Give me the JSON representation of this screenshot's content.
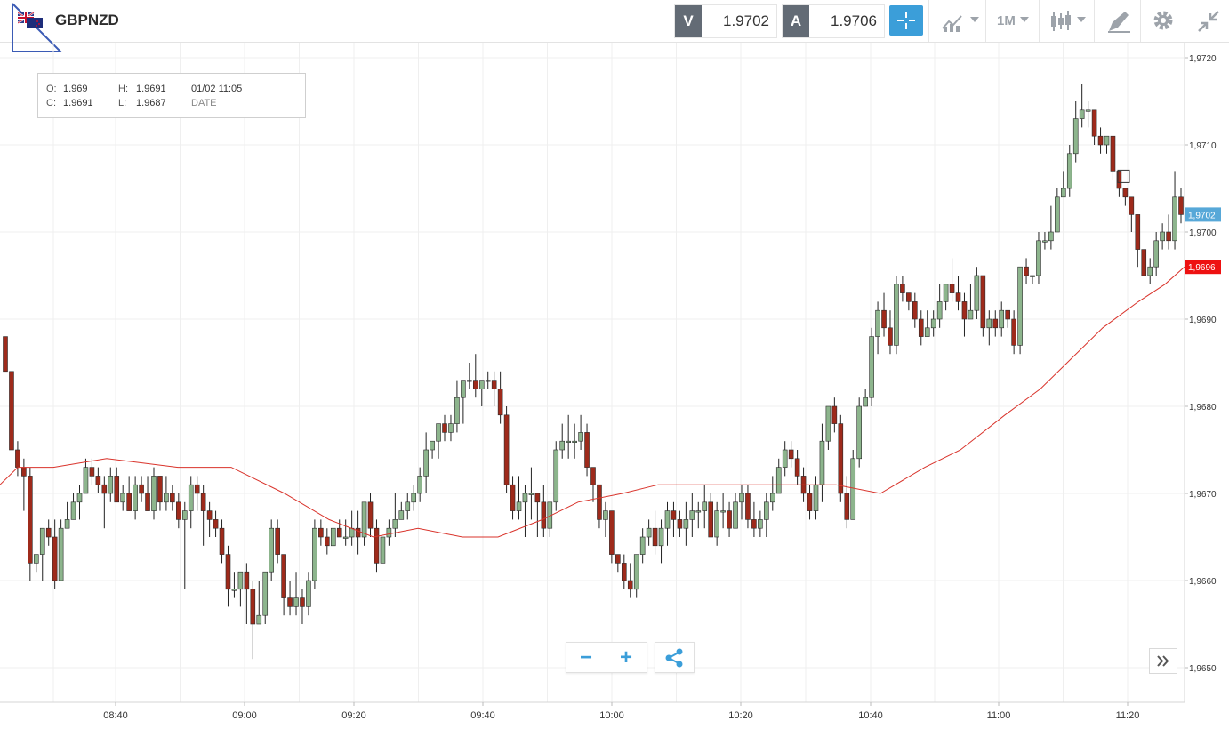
{
  "header": {
    "symbol": "GBPNZD",
    "flag_icon": "gb-nz-flag-icon",
    "sell": {
      "label": "V",
      "value": "1.9702"
    },
    "buy": {
      "label": "A",
      "value": "1.9706"
    },
    "timeframe": "1M",
    "tools": [
      "crosshair-icon",
      "chart-type-icon",
      "candlestick-icon",
      "draw-tool-icon",
      "gear-icon",
      "collapse-icon"
    ]
  },
  "ohlc_panel": {
    "o_label": "O:",
    "o_value": "1.969",
    "h_label": "H:",
    "h_value": "1.9691",
    "c_label": "C:",
    "c_value": "1.9691",
    "l_label": "L:",
    "l_value": "1.9687",
    "date": "01/02 11:05",
    "date_label": "DATE"
  },
  "controls": {
    "zoom_out": "−",
    "zoom_in": "+"
  },
  "colors": {
    "up": "#8db58d",
    "down": "#9e2a1b",
    "ma": "#d9332b",
    "accent": "#3b9ed9",
    "current": "#57a8d8",
    "ma_tag": "#ee1111"
  },
  "chart_data": {
    "type": "candlestick",
    "symbol": "GBPNZD",
    "ylim": [
      1.9646,
      1.9723
    ],
    "y_ticks": [
      "1,9720",
      "1,9710",
      "1,9700",
      "1,9690",
      "1,9680",
      "1,9670",
      "1,9660",
      "1,9650"
    ],
    "x_ticks": [
      "08:40",
      "09:00",
      "09:20",
      "09:40",
      "10:00",
      "10:20",
      "10:40",
      "11:00",
      "11:20"
    ],
    "price_tags": [
      {
        "label": "1,9702",
        "value": 1.9702,
        "kind": "current"
      },
      {
        "label": "1,9696",
        "value": 1.9696,
        "kind": "ma"
      }
    ],
    "moving_average": [
      [
        0,
        1.9671
      ],
      [
        20,
        1.9673
      ],
      [
        60,
        1.9673
      ],
      [
        120,
        1.9674
      ],
      [
        200,
        1.9673
      ],
      [
        260,
        1.9673
      ],
      [
        320,
        1.967
      ],
      [
        370,
        1.9667
      ],
      [
        420,
        1.9665
      ],
      [
        470,
        1.9666
      ],
      [
        520,
        1.9665
      ],
      [
        560,
        1.9665
      ],
      [
        610,
        1.9667
      ],
      [
        650,
        1.9669
      ],
      [
        700,
        1.967
      ],
      [
        740,
        1.9671
      ],
      [
        800,
        1.9671
      ],
      [
        860,
        1.9671
      ],
      [
        940,
        1.9671
      ],
      [
        990,
        1.967
      ],
      [
        1040,
        1.9673
      ],
      [
        1080,
        1.9675
      ],
      [
        1130,
        1.9679
      ],
      [
        1170,
        1.9682
      ],
      [
        1200,
        1.9685
      ],
      [
        1240,
        1.9689
      ],
      [
        1280,
        1.9692
      ],
      [
        1310,
        1.9694
      ],
      [
        1332,
        1.9696
      ]
    ],
    "candles": [
      [
        1.9688,
        1.9684,
        1.9688,
        1.9684
      ],
      [
        1.9684,
        1.9675,
        1.9684,
        1.9675
      ],
      [
        1.9675,
        1.9673,
        1.9676,
        1.9672
      ],
      [
        1.9673,
        1.9672,
        1.9674,
        1.9668
      ],
      [
        1.9672,
        1.9662,
        1.9673,
        1.966
      ],
      [
        1.9662,
        1.9663,
        1.9663,
        1.9661
      ],
      [
        1.9663,
        1.9666,
        1.9666,
        1.966
      ],
      [
        1.9666,
        1.9665,
        1.9667,
        1.9664
      ],
      [
        1.9665,
        1.966,
        1.9667,
        1.9659
      ],
      [
        1.966,
        1.9666,
        1.9667,
        1.966
      ],
      [
        1.9666,
        1.9667,
        1.9669,
        1.9666
      ],
      [
        1.9667,
        1.9669,
        1.967,
        1.9667
      ],
      [
        1.9669,
        1.967,
        1.9671,
        1.9667
      ],
      [
        1.967,
        1.9673,
        1.9674,
        1.967
      ],
      [
        1.9673,
        1.9672,
        1.9674,
        1.9671
      ],
      [
        1.9672,
        1.9671,
        1.9673,
        1.967
      ],
      [
        1.9671,
        1.967,
        1.9672,
        1.9666
      ],
      [
        1.967,
        1.9672,
        1.9673,
        1.9669
      ],
      [
        1.9672,
        1.9669,
        1.9673,
        1.9669
      ],
      [
        1.9669,
        1.967,
        1.9671,
        1.9668
      ],
      [
        1.967,
        1.9668,
        1.9672,
        1.9668
      ],
      [
        1.9668,
        1.9671,
        1.9672,
        1.9667
      ],
      [
        1.9671,
        1.967,
        1.9672,
        1.9669
      ],
      [
        1.967,
        1.9668,
        1.9672,
        1.9668
      ],
      [
        1.9668,
        1.9672,
        1.9673,
        1.9667
      ],
      [
        1.9672,
        1.9669,
        1.9672,
        1.9668
      ],
      [
        1.9669,
        1.967,
        1.9672,
        1.9668
      ],
      [
        1.967,
        1.9669,
        1.9671,
        1.9668
      ],
      [
        1.9669,
        1.9667,
        1.967,
        1.9666
      ],
      [
        1.9667,
        1.9668,
        1.9669,
        1.9659
      ],
      [
        1.9668,
        1.9671,
        1.9672,
        1.9666
      ],
      [
        1.9671,
        1.967,
        1.9672,
        1.9668
      ],
      [
        1.967,
        1.9668,
        1.9671,
        1.9664
      ],
      [
        1.9668,
        1.9667,
        1.9669,
        1.9665
      ],
      [
        1.9667,
        1.9666,
        1.9668,
        1.9665
      ],
      [
        1.9666,
        1.9663,
        1.9667,
        1.9662
      ],
      [
        1.9663,
        1.9659,
        1.9664,
        1.9657
      ],
      [
        1.9659,
        1.9659,
        1.9661,
        1.9658
      ],
      [
        1.9659,
        1.9661,
        1.9661,
        1.9657
      ],
      [
        1.9661,
        1.9659,
        1.9662,
        1.9655
      ],
      [
        1.9659,
        1.9655,
        1.966,
        1.9651
      ],
      [
        1.9655,
        1.9656,
        1.966,
        1.9655
      ],
      [
        1.9656,
        1.9661,
        1.9661,
        1.9655
      ],
      [
        1.9661,
        1.9666,
        1.9667,
        1.966
      ],
      [
        1.9666,
        1.9663,
        1.9667,
        1.9662
      ],
      [
        1.9663,
        1.9658,
        1.9663,
        1.9656
      ],
      [
        1.9658,
        1.9657,
        1.966,
        1.9656
      ],
      [
        1.9657,
        1.9658,
        1.9661,
        1.9656
      ],
      [
        1.9658,
        1.9657,
        1.9659,
        1.9655
      ],
      [
        1.9657,
        1.966,
        1.9661,
        1.9656
      ],
      [
        1.966,
        1.9666,
        1.9667,
        1.9659
      ],
      [
        1.9666,
        1.9665,
        1.9667,
        1.9664
      ],
      [
        1.9665,
        1.9664,
        1.9666,
        1.9663
      ],
      [
        1.9664,
        1.9666,
        1.9666,
        1.9664
      ],
      [
        1.9666,
        1.9665,
        1.9667,
        1.9665
      ],
      [
        1.9665,
        1.9665,
        1.9667,
        1.9664
      ],
      [
        1.9665,
        1.9666,
        1.9668,
        1.9664
      ],
      [
        1.9666,
        1.9665,
        1.9668,
        1.9663
      ],
      [
        1.9665,
        1.9669,
        1.9669,
        1.9664
      ],
      [
        1.9669,
        1.9666,
        1.967,
        1.9665
      ],
      [
        1.9666,
        1.9662,
        1.9667,
        1.9661
      ],
      [
        1.9662,
        1.9665,
        1.9665,
        1.9662
      ],
      [
        1.9665,
        1.9666,
        1.9667,
        1.9664
      ],
      [
        1.9666,
        1.9667,
        1.967,
        1.9665
      ],
      [
        1.9667,
        1.9668,
        1.9669,
        1.9667
      ],
      [
        1.9668,
        1.9669,
        1.967,
        1.9667
      ],
      [
        1.9669,
        1.967,
        1.9671,
        1.9668
      ],
      [
        1.967,
        1.9672,
        1.9673,
        1.9669
      ],
      [
        1.9672,
        1.9675,
        1.9677,
        1.967
      ],
      [
        1.9675,
        1.9676,
        1.9676,
        1.9674
      ],
      [
        1.9676,
        1.9678,
        1.9678,
        1.9674
      ],
      [
        1.9678,
        1.9677,
        1.9679,
        1.9676
      ],
      [
        1.9677,
        1.9678,
        1.9679,
        1.9676
      ],
      [
        1.9678,
        1.9681,
        1.9683,
        1.9677
      ],
      [
        1.9681,
        1.9683,
        1.9683,
        1.9678
      ],
      [
        1.9683,
        1.9683,
        1.9685,
        1.9682
      ],
      [
        1.9683,
        1.9682,
        1.9686,
        1.9681
      ],
      [
        1.9682,
        1.9683,
        1.9683,
        1.968
      ],
      [
        1.9683,
        1.9683,
        1.9684,
        1.9682
      ],
      [
        1.9683,
        1.9682,
        1.9684,
        1.968
      ],
      [
        1.9682,
        1.9679,
        1.9684,
        1.9678
      ],
      [
        1.9679,
        1.9671,
        1.968,
        1.967
      ],
      [
        1.9671,
        1.9668,
        1.9672,
        1.9667
      ],
      [
        1.9668,
        1.9669,
        1.9672,
        1.9667
      ],
      [
        1.9669,
        1.967,
        1.9671,
        1.9665
      ],
      [
        1.967,
        1.967,
        1.9673,
        1.9667
      ],
      [
        1.967,
        1.9669,
        1.967,
        1.9665
      ],
      [
        1.9669,
        1.9666,
        1.9671,
        1.9665
      ],
      [
        1.9666,
        1.9669,
        1.9669,
        1.9665
      ],
      [
        1.9669,
        1.9675,
        1.9676,
        1.9668
      ],
      [
        1.9675,
        1.9676,
        1.9678,
        1.9674
      ],
      [
        1.9676,
        1.9676,
        1.9679,
        1.9674
      ],
      [
        1.9676,
        1.9676,
        1.9678,
        1.9674
      ],
      [
        1.9676,
        1.9677,
        1.9679,
        1.9675
      ],
      [
        1.9677,
        1.9673,
        1.9678,
        1.9672
      ],
      [
        1.9673,
        1.9671,
        1.9673,
        1.9669
      ],
      [
        1.9671,
        1.9667,
        1.9671,
        1.9666
      ],
      [
        1.9667,
        1.9668,
        1.9669,
        1.9665
      ],
      [
        1.9668,
        1.9663,
        1.9668,
        1.9662
      ],
      [
        1.9663,
        1.9662,
        1.9663,
        1.9661
      ],
      [
        1.9662,
        1.966,
        1.9663,
        1.9659
      ],
      [
        1.966,
        1.9659,
        1.9662,
        1.9658
      ],
      [
        1.9659,
        1.9663,
        1.9663,
        1.9658
      ],
      [
        1.9663,
        1.9665,
        1.9666,
        1.9662
      ],
      [
        1.9665,
        1.9666,
        1.9667,
        1.9664
      ],
      [
        1.9666,
        1.9664,
        1.9668,
        1.9663
      ],
      [
        1.9664,
        1.9666,
        1.9667,
        1.9662
      ],
      [
        1.9666,
        1.9668,
        1.9669,
        1.9664
      ],
      [
        1.9668,
        1.9667,
        1.9669,
        1.9665
      ],
      [
        1.9667,
        1.9666,
        1.9668,
        1.9665
      ],
      [
        1.9666,
        1.9667,
        1.9669,
        1.9664
      ],
      [
        1.9667,
        1.9668,
        1.967,
        1.9665
      ],
      [
        1.9668,
        1.9668,
        1.9669,
        1.9666
      ],
      [
        1.9668,
        1.9669,
        1.9671,
        1.9666
      ],
      [
        1.9669,
        1.9665,
        1.967,
        1.9665
      ],
      [
        1.9665,
        1.9668,
        1.9669,
        1.9664
      ],
      [
        1.9668,
        1.9668,
        1.967,
        1.9666
      ],
      [
        1.9668,
        1.9666,
        1.9669,
        1.9665
      ],
      [
        1.9666,
        1.9669,
        1.967,
        1.9666
      ],
      [
        1.9669,
        1.967,
        1.9671,
        1.9667
      ],
      [
        1.967,
        1.9667,
        1.9671,
        1.9666
      ],
      [
        1.9667,
        1.9666,
        1.9669,
        1.9665
      ],
      [
        1.9666,
        1.9667,
        1.9668,
        1.9665
      ],
      [
        1.9667,
        1.9669,
        1.967,
        1.9665
      ],
      [
        1.9669,
        1.967,
        1.9672,
        1.9668
      ],
      [
        1.967,
        1.9673,
        1.9674,
        1.967
      ],
      [
        1.9673,
        1.9675,
        1.9676,
        1.9672
      ],
      [
        1.9675,
        1.9674,
        1.9676,
        1.9673
      ],
      [
        1.9674,
        1.9672,
        1.9675,
        1.9671
      ],
      [
        1.9672,
        1.967,
        1.9673,
        1.9669
      ],
      [
        1.967,
        1.9668,
        1.9671,
        1.9667
      ],
      [
        1.9668,
        1.9671,
        1.9672,
        1.9667
      ],
      [
        1.9671,
        1.9676,
        1.9678,
        1.9669
      ],
      [
        1.9676,
        1.968,
        1.968,
        1.9675
      ],
      [
        1.968,
        1.9678,
        1.9681,
        1.9677
      ],
      [
        1.9678,
        1.967,
        1.9679,
        1.9669
      ],
      [
        1.967,
        1.9667,
        1.9672,
        1.9666
      ],
      [
        1.9667,
        1.9674,
        1.9675,
        1.9667
      ],
      [
        1.9674,
        1.968,
        1.9681,
        1.9673
      ],
      [
        1.968,
        1.9681,
        1.9682,
        1.968
      ],
      [
        1.9681,
        1.9688,
        1.9689,
        1.968
      ],
      [
        1.9688,
        1.9691,
        1.9692,
        1.9686
      ],
      [
        1.9691,
        1.9689,
        1.9693,
        1.9688
      ],
      [
        1.9689,
        1.9687,
        1.9691,
        1.9686
      ],
      [
        1.9687,
        1.9694,
        1.9695,
        1.9686
      ],
      [
        1.9694,
        1.9693,
        1.9695,
        1.9692
      ],
      [
        1.9693,
        1.9692,
        1.9693,
        1.9691
      ],
      [
        1.9692,
        1.969,
        1.9693,
        1.9689
      ],
      [
        1.969,
        1.9688,
        1.9691,
        1.9687
      ],
      [
        1.9688,
        1.9689,
        1.9691,
        1.9688
      ],
      [
        1.9689,
        1.969,
        1.9691,
        1.9688
      ],
      [
        1.969,
        1.9692,
        1.9694,
        1.9689
      ],
      [
        1.9692,
        1.9694,
        1.9694,
        1.9691
      ],
      [
        1.9694,
        1.9693,
        1.9697,
        1.9692
      ],
      [
        1.9693,
        1.9692,
        1.9695,
        1.9691
      ],
      [
        1.9692,
        1.969,
        1.9693,
        1.9688
      ],
      [
        1.969,
        1.9691,
        1.9694,
        1.969
      ],
      [
        1.9691,
        1.9695,
        1.9696,
        1.969
      ],
      [
        1.9695,
        1.9689,
        1.9695,
        1.9688
      ],
      [
        1.9689,
        1.969,
        1.9691,
        1.9687
      ],
      [
        1.969,
        1.9689,
        1.9691,
        1.9688
      ],
      [
        1.9689,
        1.9691,
        1.9692,
        1.9688
      ],
      [
        1.9691,
        1.969,
        1.9691,
        1.9689
      ],
      [
        1.969,
        1.9687,
        1.9691,
        1.9686
      ],
      [
        1.9687,
        1.9696,
        1.9696,
        1.9686
      ],
      [
        1.9696,
        1.9695,
        1.9697,
        1.9694
      ],
      [
        1.9695,
        1.9695,
        1.9695,
        1.9694
      ],
      [
        1.9695,
        1.9699,
        1.97,
        1.9694
      ],
      [
        1.9699,
        1.9699,
        1.97,
        1.9698
      ],
      [
        1.9699,
        1.97,
        1.9703,
        1.9698
      ],
      [
        1.97,
        1.9704,
        1.9705,
        1.97
      ],
      [
        1.9704,
        1.9705,
        1.9707,
        1.9704
      ],
      [
        1.9705,
        1.9709,
        1.971,
        1.9704
      ],
      [
        1.9709,
        1.9713,
        1.9715,
        1.9708
      ],
      [
        1.9713,
        1.9714,
        1.9717,
        1.9712
      ],
      [
        1.9714,
        1.9714,
        1.9715,
        1.9712
      ],
      [
        1.9714,
        1.9711,
        1.9714,
        1.971
      ],
      [
        1.9711,
        1.971,
        1.9712,
        1.9709
      ],
      [
        1.971,
        1.9711,
        1.9711,
        1.9709
      ],
      [
        1.9711,
        1.9707,
        1.9711,
        1.9706
      ],
      [
        1.9707,
        1.9705,
        1.9707,
        1.9704
      ],
      [
        1.9705,
        1.9704,
        1.9705,
        1.9703
      ],
      [
        1.9704,
        1.9702,
        1.9704,
        1.97
      ],
      [
        1.9702,
        1.9698,
        1.9702,
        1.9696
      ],
      [
        1.9698,
        1.9695,
        1.9698,
        1.9695
      ],
      [
        1.9695,
        1.9696,
        1.9697,
        1.9694
      ],
      [
        1.9696,
        1.9699,
        1.97,
        1.9695
      ],
      [
        1.9699,
        1.97,
        1.9701,
        1.9698
      ],
      [
        1.97,
        1.9699,
        1.9702,
        1.9698
      ],
      [
        1.9699,
        1.9704,
        1.9707,
        1.9698
      ],
      [
        1.9704,
        1.9702,
        1.9705,
        1.9701
      ]
    ]
  }
}
